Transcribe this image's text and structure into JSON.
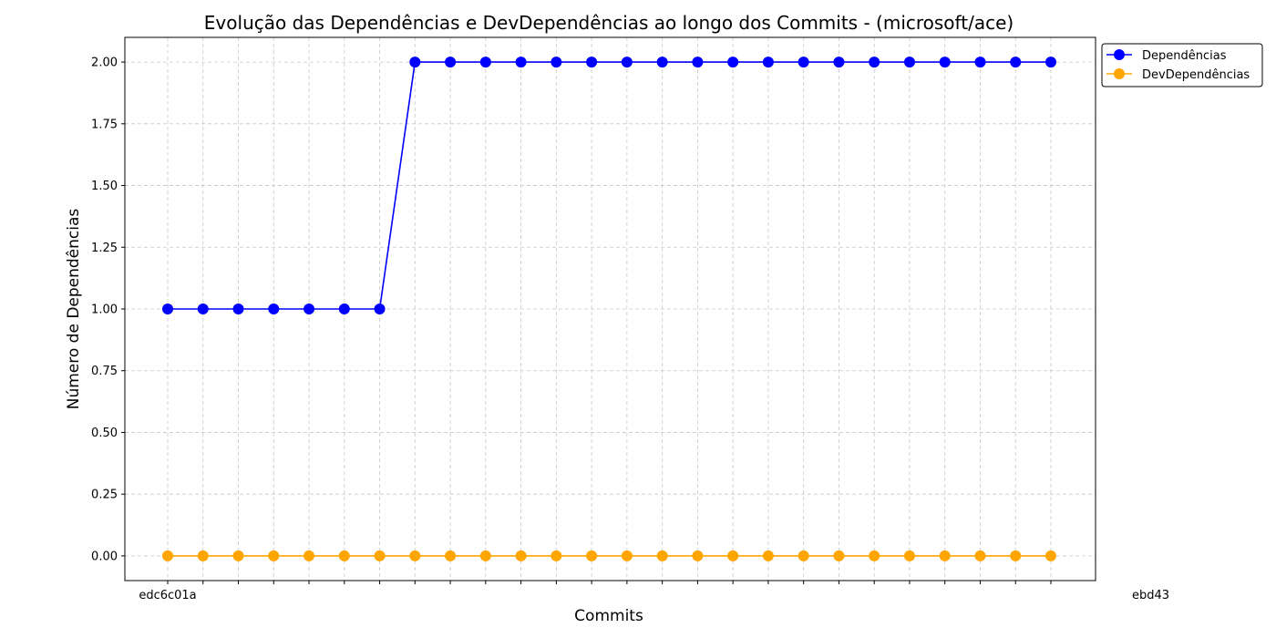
{
  "chart_data": {
    "type": "line",
    "title": "Evolução das Dependências e DevDependências ao longo dos Commits - (microsoft/ace)",
    "xlabel": "Commits",
    "ylabel": "Número de Dependências",
    "ylim": [
      -0.1,
      2.1
    ],
    "yticks": [
      "0.00",
      "0.25",
      "0.50",
      "0.75",
      "1.00",
      "1.25",
      "1.50",
      "1.75",
      "2.00"
    ],
    "first_commit_label": "edc6c01a",
    "last_commit_label": "ebd43",
    "commit_count": 26,
    "grid": true,
    "legend_position": "upper-right-outside",
    "series": [
      {
        "name": "Dependências",
        "color": "#0000ff",
        "values": [
          1,
          1,
          1,
          1,
          1,
          1,
          1,
          2,
          2,
          2,
          2,
          2,
          2,
          2,
          2,
          2,
          2,
          2,
          2,
          2,
          2,
          2,
          2,
          2,
          2,
          2
        ]
      },
      {
        "name": "DevDependências",
        "color": "#ffa500",
        "values": [
          0,
          0,
          0,
          0,
          0,
          0,
          0,
          0,
          0,
          0,
          0,
          0,
          0,
          0,
          0,
          0,
          0,
          0,
          0,
          0,
          0,
          0,
          0,
          0,
          0,
          0
        ]
      }
    ]
  }
}
